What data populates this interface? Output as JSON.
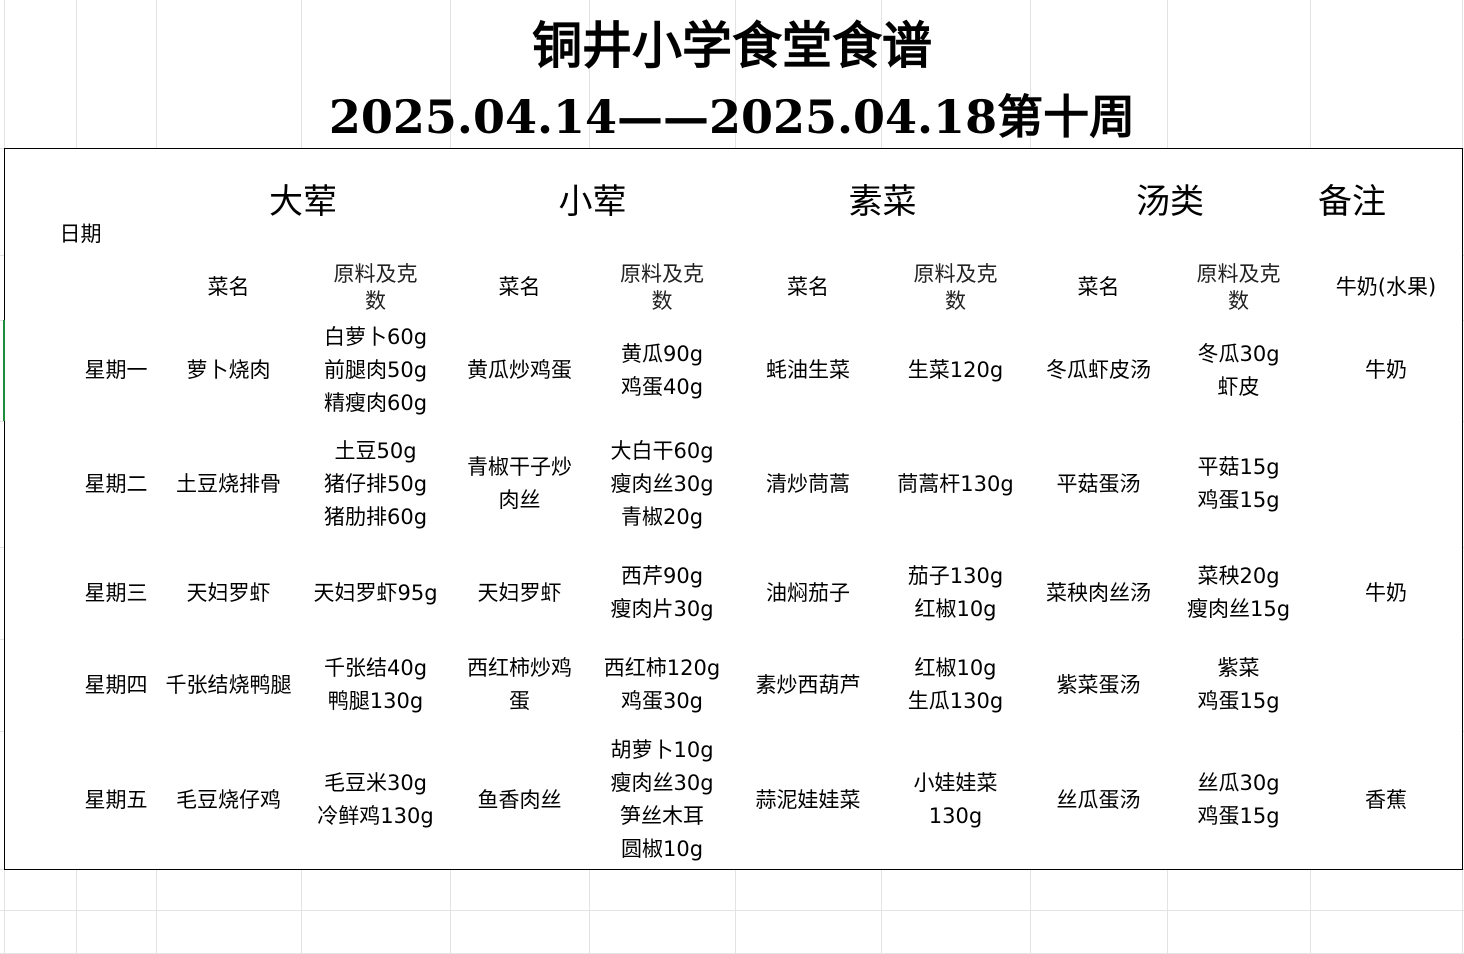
{
  "title": "铜井小学食堂食谱",
  "subtitle": "2025.04.14——2025.04.18第十周",
  "headers": {
    "date": "日期",
    "groups": [
      "大荤",
      "小荤",
      "素菜",
      "汤类",
      "备注"
    ],
    "dish_name": "菜名",
    "ingredients": "原料及克\n数",
    "remark_sub": "牛奶(水果)"
  },
  "rows": [
    {
      "day": "星期一",
      "cells": [
        "萝卜烧肉",
        "白萝卜60g\n前腿肉50g\n精瘦肉60g",
        "黄瓜炒鸡蛋",
        "黄瓜90g\n鸡蛋40g",
        "蚝油生菜",
        "生菜120g",
        "冬瓜虾皮汤",
        "冬瓜30g\n虾皮",
        "牛奶"
      ]
    },
    {
      "day": "星期二",
      "cells": [
        "土豆烧排骨",
        "土豆50g\n猪仔排50g\n猪肋排60g",
        "青椒干子炒\n肉丝",
        "大白干60g\n瘦肉丝30g\n青椒20g",
        "清炒茼蒿",
        "茼蒿杆130g",
        "平菇蛋汤",
        "平菇15g\n鸡蛋15g",
        ""
      ]
    },
    {
      "day": "星期三",
      "cells": [
        "天妇罗虾",
        "天妇罗虾95g",
        "天妇罗虾",
        "西芹90g\n瘦肉片30g",
        "油焖茄子",
        "茄子130g\n红椒10g",
        "菜秧肉丝汤",
        "菜秧20g\n瘦肉丝15g",
        "牛奶"
      ]
    },
    {
      "day": "星期四",
      "cells": [
        "千张结烧鸭腿",
        "千张结40g\n鸭腿130g",
        "西红柿炒鸡\n蛋",
        "西红柿120g\n鸡蛋30g",
        "素炒西葫芦",
        "红椒10g\n生瓜130g",
        "紫菜蛋汤",
        "紫菜\n鸡蛋15g",
        ""
      ]
    },
    {
      "day": "星期五",
      "cells": [
        "毛豆烧仔鸡",
        "毛豆米30g\n冷鲜鸡130g",
        "鱼香肉丝",
        "胡萝卜10g\n瘦肉丝30g\n笋丝木耳\n圆椒10g",
        "蒜泥娃娃菜",
        "小娃娃菜\n130g",
        "丝瓜蛋汤",
        "丝瓜30g\n鸡蛋15g",
        "香蕉"
      ]
    }
  ]
}
